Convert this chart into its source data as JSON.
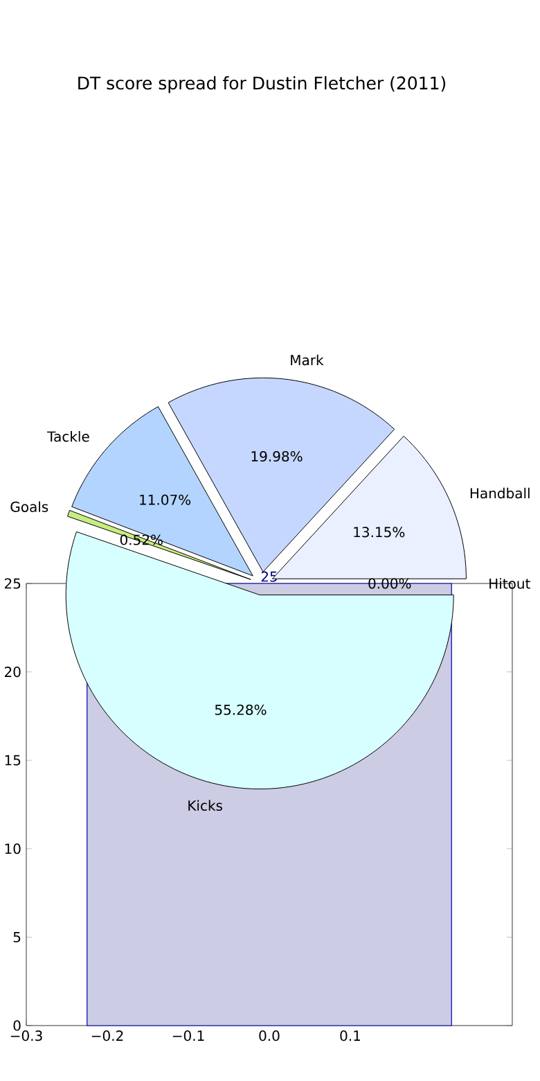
{
  "chart_data": [
    {
      "type": "pie",
      "title": "DT score spread for Dustin Fletcher (2011)",
      "categories": [
        "Hitout",
        "Handball",
        "Mark",
        "Tackle",
        "Goals",
        "Kicks"
      ],
      "values": [
        0.0,
        13.15,
        19.98,
        11.07,
        0.52,
        55.28
      ],
      "value_labels": [
        "0.00%",
        "13.15%",
        "19.98%",
        "11.07%",
        "0.52%",
        "55.28%"
      ],
      "colors": [
        "#d0d0d0",
        "#eaf0ff",
        "#c5d7ff",
        "#b3d4ff",
        "#c8ec80",
        "#d8ffff"
      ]
    },
    {
      "type": "histogram",
      "bins": [
        -0.225,
        0.225
      ],
      "values": [
        25
      ],
      "color": "#cccce4",
      "data_labels": true,
      "xlim": [
        -0.3,
        0.3
      ],
      "ylim": [
        0,
        25
      ],
      "xticks": [
        {
          "value": -0.3,
          "label": "−0.3"
        },
        {
          "value": -0.2,
          "label": "−0.2"
        },
        {
          "value": -0.1,
          "label": "−0.1"
        },
        {
          "value": 0.0,
          "label": "0.0"
        },
        {
          "value": 0.1,
          "label": "0.1"
        }
      ],
      "yticks": [
        0,
        5,
        10,
        15,
        20,
        25
      ]
    }
  ]
}
